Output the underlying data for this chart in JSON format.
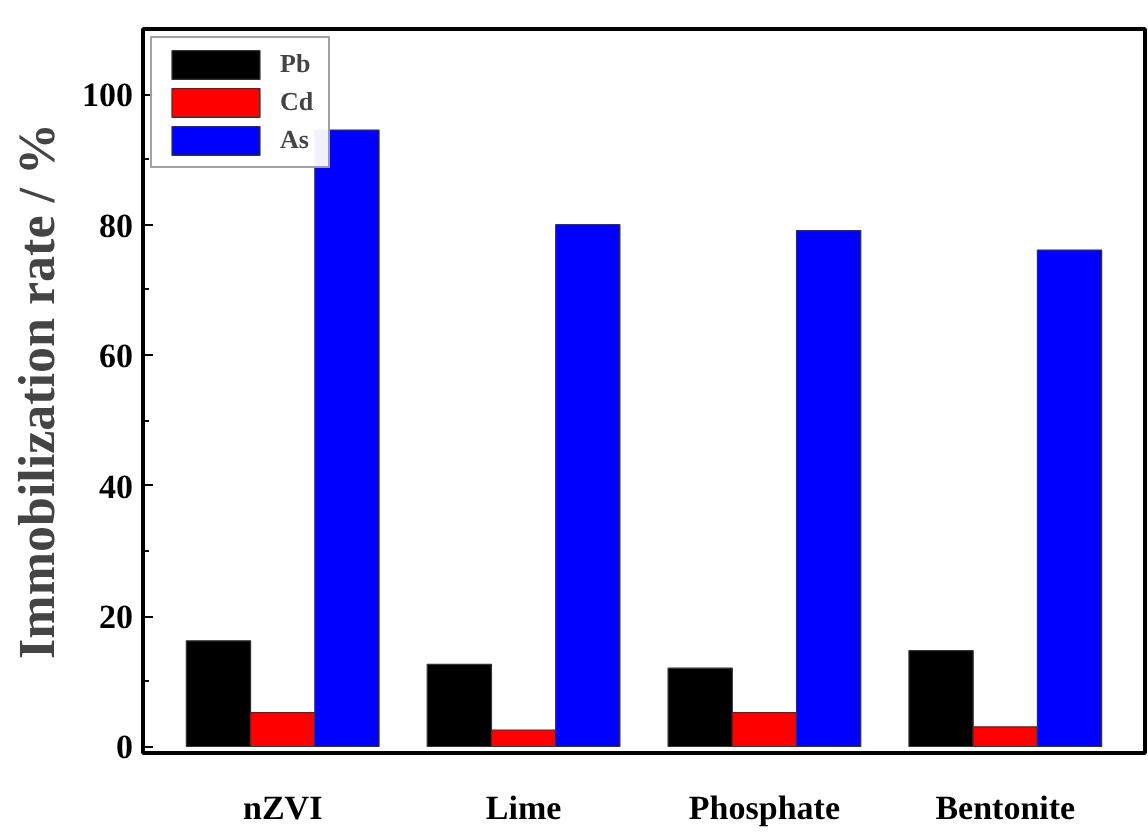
{
  "chart_data": {
    "type": "bar",
    "ylabel": "Immobilization rate / %",
    "categories": [
      "nZVI",
      "Lime",
      "Phosphate",
      "Bentonite"
    ],
    "series": [
      {
        "name": "Pb",
        "color": "#000000",
        "values": [
          16.2,
          12.6,
          12.0,
          14.7
        ]
      },
      {
        "name": "Cd",
        "color": "#ff0000",
        "values": [
          5.2,
          2.5,
          5.2,
          3.0
        ]
      },
      {
        "name": "As",
        "color": "#0000ff",
        "values": [
          94.5,
          80.0,
          79.1,
          76.1
        ]
      }
    ],
    "ylim": [
      -1,
      110
    ],
    "yticks": [
      0,
      20,
      40,
      60,
      80,
      100
    ],
    "grid": false,
    "legend": "top left"
  }
}
